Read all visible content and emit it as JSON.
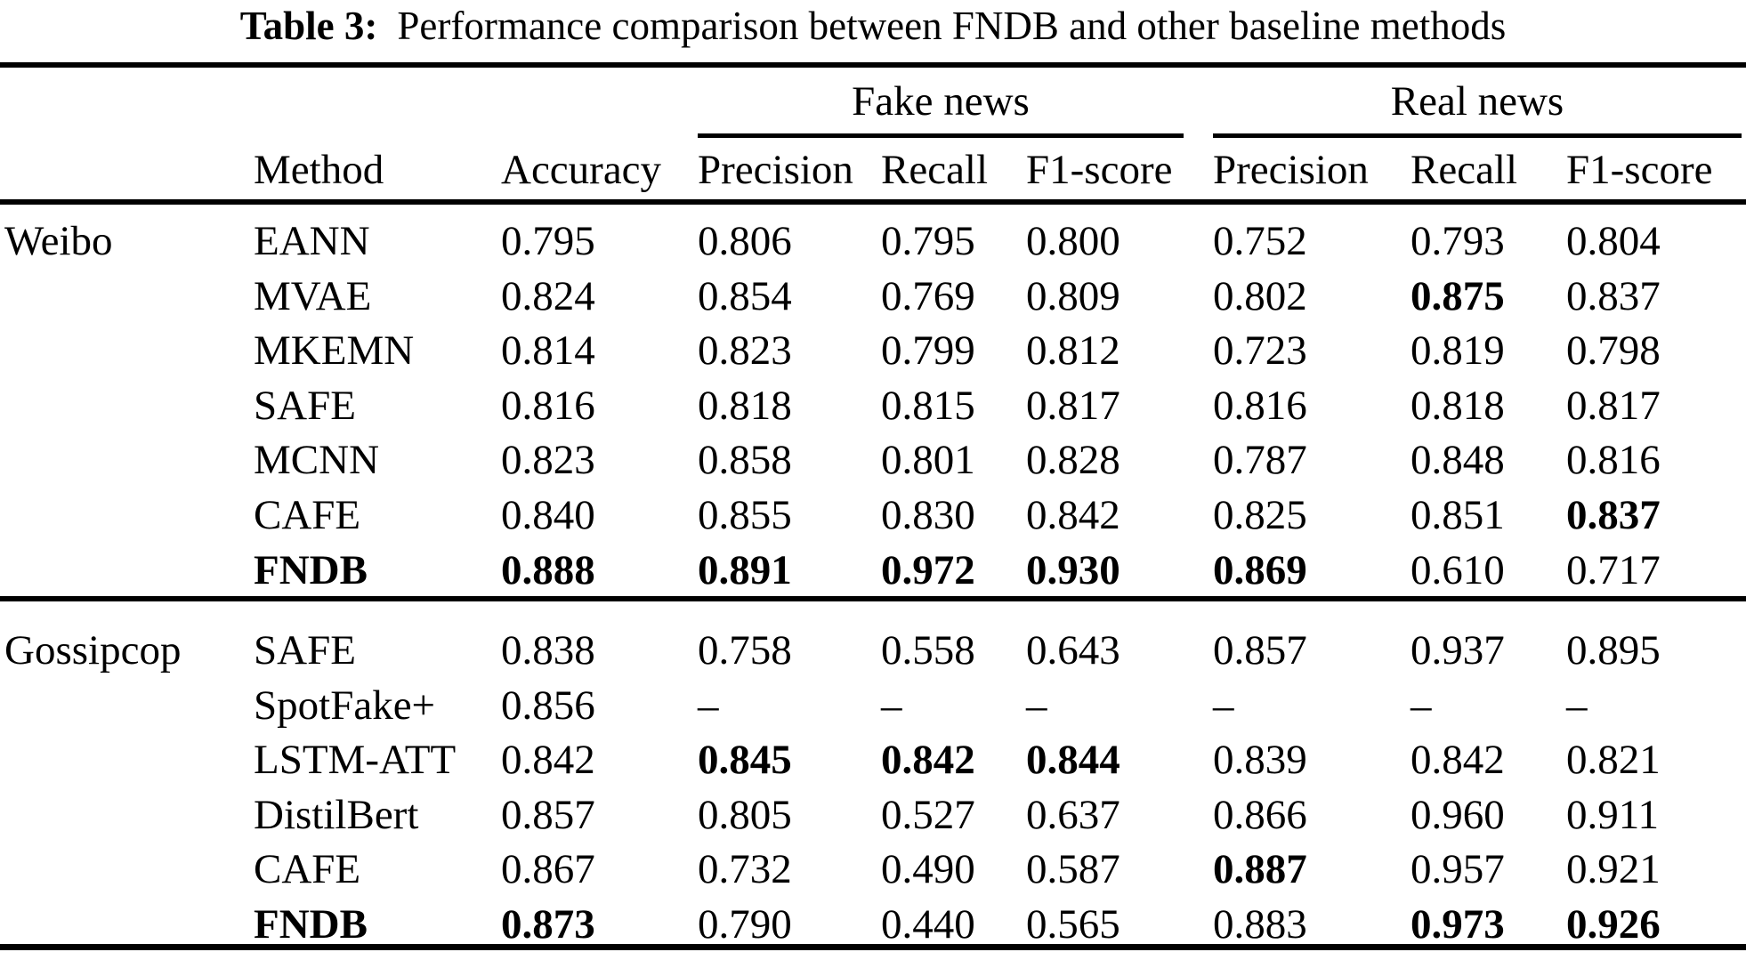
{
  "title": {
    "label": "Table 3:",
    "text": "Performance comparison between FNDB and other baseline methods"
  },
  "header": {
    "method": "Method",
    "accuracy": "Accuracy",
    "groups": [
      {
        "label": "Fake news",
        "cols": [
          "Precision",
          "Recall",
          "F1-score"
        ]
      },
      {
        "label": "Real news",
        "cols": [
          "Precision",
          "Recall",
          "F1-score"
        ]
      }
    ]
  },
  "sections": [
    {
      "dataset": "Weibo",
      "rows": [
        {
          "method": "EANN",
          "method_bold": false,
          "values": [
            "0.795",
            "0.806",
            "0.795",
            "0.800",
            "0.752",
            "0.793",
            "0.804"
          ],
          "bold": [
            false,
            false,
            false,
            false,
            false,
            false,
            false
          ]
        },
        {
          "method": "MVAE",
          "method_bold": false,
          "values": [
            "0.824",
            "0.854",
            "0.769",
            "0.809",
            "0.802",
            "0.875",
            "0.837"
          ],
          "bold": [
            false,
            false,
            false,
            false,
            false,
            true,
            false
          ]
        },
        {
          "method": "MKEMN",
          "method_bold": false,
          "values": [
            "0.814",
            "0.823",
            "0.799",
            "0.812",
            "0.723",
            "0.819",
            "0.798"
          ],
          "bold": [
            false,
            false,
            false,
            false,
            false,
            false,
            false
          ]
        },
        {
          "method": "SAFE",
          "method_bold": false,
          "values": [
            "0.816",
            "0.818",
            "0.815",
            "0.817",
            "0.816",
            "0.818",
            "0.817"
          ],
          "bold": [
            false,
            false,
            false,
            false,
            false,
            false,
            false
          ]
        },
        {
          "method": "MCNN",
          "method_bold": false,
          "values": [
            "0.823",
            "0.858",
            "0.801",
            "0.828",
            "0.787",
            "0.848",
            "0.816"
          ],
          "bold": [
            false,
            false,
            false,
            false,
            false,
            false,
            false
          ]
        },
        {
          "method": "CAFE",
          "method_bold": false,
          "values": [
            "0.840",
            "0.855",
            "0.830",
            "0.842",
            "0.825",
            "0.851",
            "0.837"
          ],
          "bold": [
            false,
            false,
            false,
            false,
            false,
            false,
            true
          ]
        },
        {
          "method": "FNDB",
          "method_bold": true,
          "values": [
            "0.888",
            "0.891",
            "0.972",
            "0.930",
            "0.869",
            "0.610",
            "0.717"
          ],
          "bold": [
            true,
            true,
            true,
            true,
            true,
            false,
            false
          ]
        }
      ]
    },
    {
      "dataset": "Gossipcop",
      "rows": [
        {
          "method": "SAFE",
          "method_bold": false,
          "values": [
            "0.838",
            "0.758",
            "0.558",
            "0.643",
            "0.857",
            "0.937",
            "0.895"
          ],
          "bold": [
            false,
            false,
            false,
            false,
            false,
            false,
            false
          ]
        },
        {
          "method": "SpotFake+",
          "method_bold": false,
          "values": [
            "0.856",
            "–",
            "–",
            "–",
            "–",
            "–",
            "–"
          ],
          "bold": [
            false,
            false,
            false,
            false,
            false,
            false,
            false
          ]
        },
        {
          "method": "LSTM-ATT",
          "method_bold": false,
          "values": [
            "0.842",
            "0.845",
            "0.842",
            "0.844",
            "0.839",
            "0.842",
            "0.821"
          ],
          "bold": [
            false,
            true,
            true,
            true,
            false,
            false,
            false
          ]
        },
        {
          "method": "DistilBert",
          "method_bold": false,
          "values": [
            "0.857",
            "0.805",
            "0.527",
            "0.637",
            "0.866",
            "0.960",
            "0.911"
          ],
          "bold": [
            false,
            false,
            false,
            false,
            false,
            false,
            false
          ]
        },
        {
          "method": "CAFE",
          "method_bold": false,
          "values": [
            "0.867",
            "0.732",
            "0.490",
            "0.587",
            "0.887",
            "0.957",
            "0.921"
          ],
          "bold": [
            false,
            false,
            false,
            false,
            true,
            false,
            false
          ]
        },
        {
          "method": "FNDB",
          "method_bold": true,
          "values": [
            "0.873",
            "0.790",
            "0.440",
            "0.565",
            "0.883",
            "0.973",
            "0.926"
          ],
          "bold": [
            true,
            false,
            false,
            false,
            false,
            true,
            true
          ]
        }
      ]
    }
  ],
  "colors": {
    "text": "#000000",
    "background": "#ffffff",
    "rule": "#000000"
  }
}
